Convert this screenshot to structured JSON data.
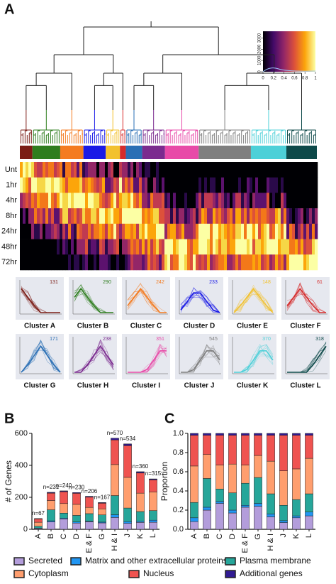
{
  "panel_labels": [
    "A",
    "B",
    "C"
  ],
  "heatmap": {
    "row_labels": [
      "Unt",
      "1hr",
      "4hr",
      "8hr",
      "24hr",
      "48hr",
      "72hr"
    ],
    "colorbar": {
      "xlim": [
        0,
        1
      ],
      "xticks": [
        0,
        0.2,
        0.4,
        0.6,
        0.8,
        1
      ],
      "ylim": [
        0,
        3600
      ],
      "yticks": [
        0,
        1000,
        2000,
        3000
      ]
    }
  },
  "clusters": [
    {
      "name": "Cluster A",
      "count": 131,
      "color": "#7b1c15"
    },
    {
      "name": "Cluster B",
      "count": 290,
      "color": "#2e7d1e"
    },
    {
      "name": "Cluster C",
      "count": 242,
      "color": "#f47b20"
    },
    {
      "name": "Cluster D",
      "count": 233,
      "color": "#1a1ae6"
    },
    {
      "name": "Cluster E",
      "count": 148,
      "color": "#f2c12e"
    },
    {
      "name": "Cluster F",
      "count": 61,
      "color": "#d62c2c"
    },
    {
      "name": "Cluster G",
      "count": 171,
      "color": "#2a6fb5"
    },
    {
      "name": "Cluster H",
      "count": 238,
      "color": "#7b2b8f"
    },
    {
      "name": "Cluster I",
      "count": 351,
      "color": "#e84aa8"
    },
    {
      "name": "Cluster J",
      "count": 545,
      "color": "#7f7f7f"
    },
    {
      "name": "Cluster K",
      "count": 370,
      "color": "#4dd0d8"
    },
    {
      "name": "Cluster L",
      "count": 318,
      "color": "#0e4a4a"
    }
  ],
  "chart_data": [
    {
      "type": "stacked-bar",
      "y_label": "# of Genes",
      "categories": [
        "A",
        "B",
        "C",
        "D",
        "E & F",
        "G",
        "H & I",
        "J",
        "K",
        "L"
      ],
      "ylim": [
        0,
        600
      ],
      "yticks": [
        0,
        200,
        400,
        600
      ],
      "totals": {
        "values": [
          67,
          231,
          240,
          230,
          206,
          167,
          570,
          534,
          360,
          315
        ],
        "value_labels": [
          "n=67",
          "n=231",
          "n=240",
          "n=230",
          "n=206",
          "n=167",
          "n=570",
          "n=534",
          "n=360",
          "n=315"
        ]
      },
      "series": [
        {
          "name": "Secreted",
          "color": "#b39ddb",
          "values": [
            5,
            46,
            65,
            39,
            47,
            40,
            74,
            37,
            43,
            44
          ]
        },
        {
          "name": "Matrix and other extracellular proteins",
          "color": "#2196f3",
          "values": [
            3,
            7,
            5,
            7,
            4,
            5,
            17,
            11,
            7,
            13
          ]
        },
        {
          "name": "Plasma membrane",
          "color": "#26a69a",
          "values": [
            11,
            69,
            31,
            41,
            47,
            45,
            120,
            85,
            61,
            60
          ]
        },
        {
          "name": "Cytoplasm",
          "color": "#ff9e6e",
          "values": [
            25,
            58,
            60,
            69,
            39,
            38,
            194,
            192,
            115,
            117
          ]
        },
        {
          "name": "Nucleus",
          "color": "#ef5350",
          "values": [
            21,
            46,
            74,
            69,
            64,
            35,
            154,
            198,
            126,
            75
          ]
        },
        {
          "name": "Additional genes",
          "color": "#311b92",
          "values": [
            2,
            5,
            5,
            5,
            5,
            4,
            11,
            11,
            8,
            6
          ]
        }
      ]
    },
    {
      "type": "stacked-bar",
      "y_label": "Proportion",
      "categories": [
        "A",
        "B",
        "C",
        "D",
        "E & F",
        "G",
        "H & I",
        "J",
        "K",
        "L"
      ],
      "ylim": [
        0,
        1
      ],
      "yticks": [
        {
          "value": 0,
          "label": "0.0"
        },
        0.2,
        0.4,
        0.6,
        0.8,
        {
          "value": 1,
          "label": "1.0"
        }
      ],
      "series": [
        {
          "name": "Secreted",
          "color": "#b39ddb",
          "values": [
            0.08,
            0.2,
            0.27,
            0.17,
            0.23,
            0.24,
            0.13,
            0.07,
            0.12,
            0.14
          ]
        },
        {
          "name": "Matrix and other extracellular proteins",
          "color": "#2196f3",
          "values": [
            0.04,
            0.03,
            0.02,
            0.03,
            0.02,
            0.03,
            0.03,
            0.02,
            0.02,
            0.04
          ]
        },
        {
          "name": "Plasma membrane",
          "color": "#26a69a",
          "values": [
            0.16,
            0.3,
            0.13,
            0.18,
            0.23,
            0.27,
            0.21,
            0.16,
            0.17,
            0.19
          ]
        },
        {
          "name": "Cytoplasm",
          "color": "#ff9e6e",
          "values": [
            0.38,
            0.25,
            0.25,
            0.3,
            0.19,
            0.23,
            0.34,
            0.36,
            0.32,
            0.37
          ]
        },
        {
          "name": "Nucleus",
          "color": "#ef5350",
          "values": [
            0.32,
            0.2,
            0.31,
            0.3,
            0.31,
            0.21,
            0.27,
            0.37,
            0.35,
            0.24
          ]
        },
        {
          "name": "Additional genes",
          "color": "#311b92",
          "values": [
            0.02,
            0.02,
            0.02,
            0.02,
            0.02,
            0.02,
            0.02,
            0.02,
            0.02,
            0.02
          ]
        }
      ]
    }
  ]
}
